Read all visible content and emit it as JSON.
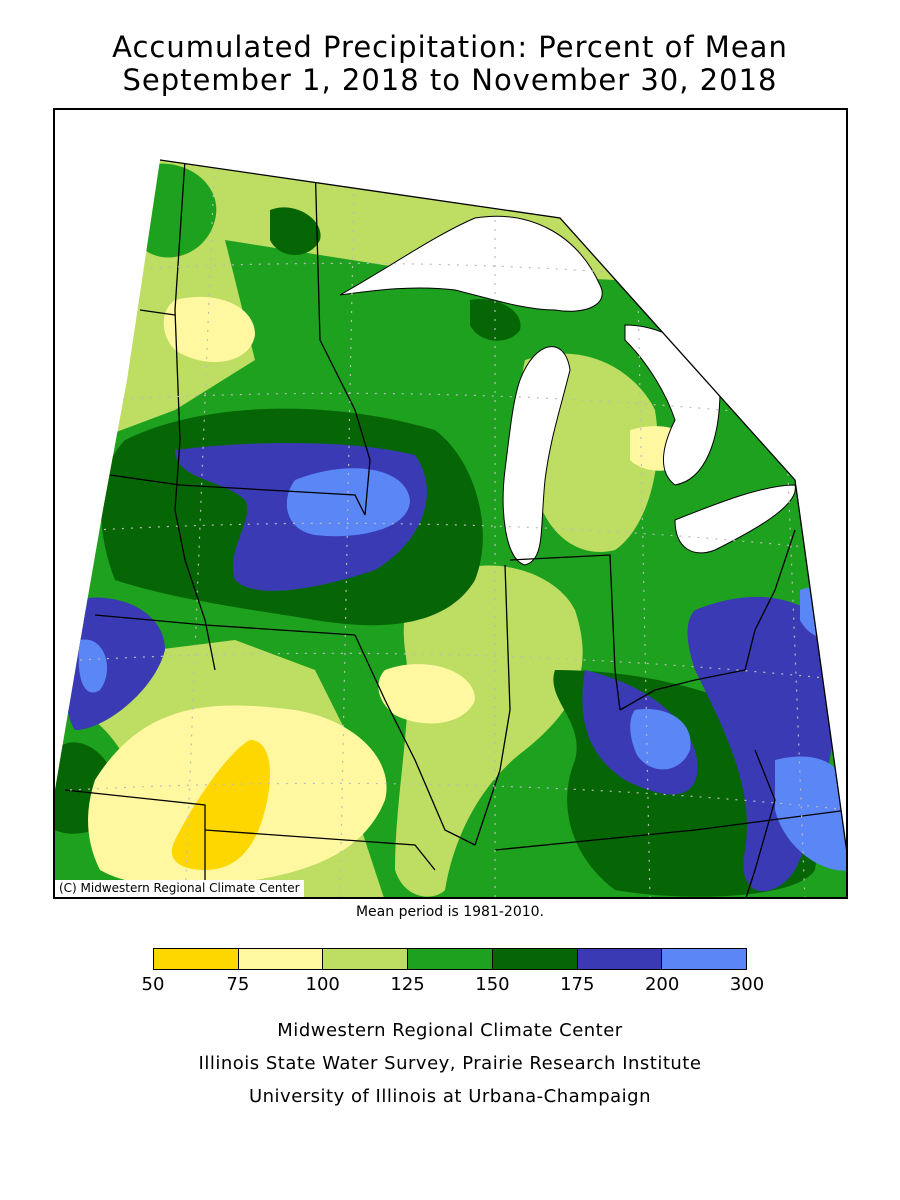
{
  "title": {
    "line1": "Accumulated Precipitation: Percent of Mean",
    "line2": "September 1, 2018 to November 30, 2018"
  },
  "map": {
    "copyright": "(C) Midwestern Regional Climate Center",
    "mean_period": "Mean period is 1981-2010."
  },
  "legend": {
    "bins": [
      {
        "from": 50,
        "to": 75,
        "color": "#ffd700"
      },
      {
        "from": 75,
        "to": 100,
        "color": "#fff8a0"
      },
      {
        "from": 100,
        "to": 125,
        "color": "#bedd63"
      },
      {
        "from": 125,
        "to": 150,
        "color": "#1ea11e"
      },
      {
        "from": 150,
        "to": 175,
        "color": "#066606"
      },
      {
        "from": 175,
        "to": 200,
        "color": "#3a3ab5"
      },
      {
        "from": 200,
        "to": 300,
        "color": "#5b86f5"
      }
    ],
    "ticks": [
      "50",
      "75",
      "100",
      "125",
      "150",
      "175",
      "200",
      "300"
    ]
  },
  "credits": {
    "line1": "Midwestern Regional Climate Center",
    "line2": "Illinois State Water Survey, Prairie Research Institute",
    "line3": "University of Illinois at Urbana-Champaign"
  },
  "colors": {
    "water": "#ffffff",
    "border": "#000000",
    "grid": "#bbbbbb"
  }
}
